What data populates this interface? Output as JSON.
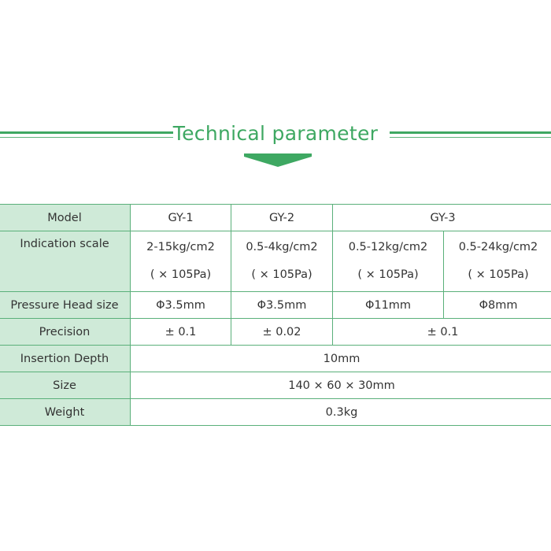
{
  "header": {
    "title": "Technical parameter",
    "accent_color": "#3ea862",
    "arrow_icon": "down-arrow"
  },
  "table": {
    "rows": [
      {
        "label": "Model",
        "values": [
          "GY-1",
          "GY-2",
          "GY-3"
        ]
      },
      {
        "label": "Indication scale",
        "values": [
          "2-15kg/cm2",
          "0.5-4kg/cm2",
          "0.5-12kg/cm2",
          "0.5-24kg/cm2"
        ],
        "units": [
          "( × 105Pa)",
          "( × 105Pa)",
          "( × 105Pa)",
          "( × 105Pa)"
        ]
      },
      {
        "label": "Pressure Head size",
        "values": [
          "Φ3.5mm",
          "Φ3.5mm",
          "Φ11mm",
          "Φ8mm"
        ]
      },
      {
        "label": "Precision",
        "values": [
          "± 0.1",
          "± 0.02",
          "± 0.1"
        ]
      },
      {
        "label": "Insertion Depth",
        "values": [
          "10mm"
        ]
      },
      {
        "label": "Size",
        "values": [
          "140 × 60 × 30mm"
        ]
      },
      {
        "label": "Weight",
        "values": [
          "0.3kg"
        ]
      }
    ]
  }
}
